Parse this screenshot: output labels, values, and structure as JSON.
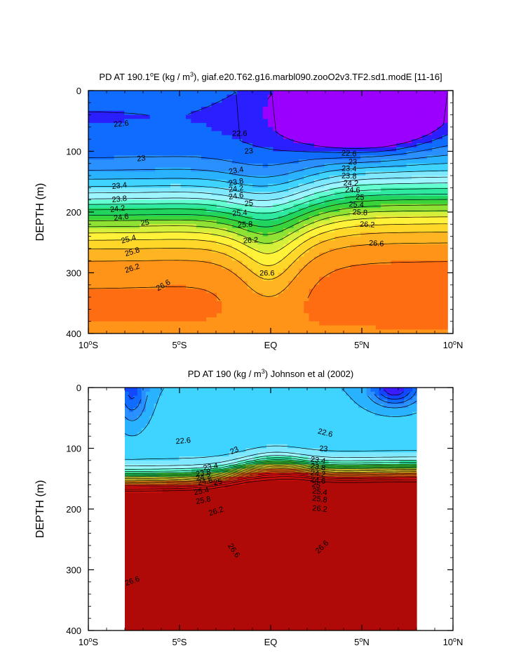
{
  "figure": {
    "background": "#ffffff"
  },
  "chart_data": [
    {
      "type": "contour",
      "panel": "model",
      "title_prefix": "PD AT 190.1",
      "title_deg": "o",
      "title_mid": "E (kg / m",
      "title_exp": "3",
      "title_suffix": "), giaf.e20.T62.g16.marbl090.zooO2v3.TF2.sd1.modE [11-16]",
      "ylabel": "DEPTH (m)",
      "xlim": [
        -10,
        10
      ],
      "ylim": [
        400,
        0
      ],
      "xticks": [
        {
          "v": -10,
          "num": "10",
          "hem": "S",
          "deg": "o"
        },
        {
          "v": -5,
          "num": "5",
          "hem": "S",
          "deg": "o"
        },
        {
          "v": 0,
          "num": "EQ",
          "hem": "",
          "deg": ""
        },
        {
          "v": 5,
          "num": "5",
          "hem": "N",
          "deg": "o"
        },
        {
          "v": 10,
          "num": "10",
          "hem": "N",
          "deg": "o"
        }
      ],
      "yticks": [
        0,
        100,
        200,
        300,
        400
      ],
      "data_lon_range": [
        -10,
        9.7
      ],
      "levels": [
        22.4,
        22.6,
        22.8,
        23.0,
        23.2,
        23.4,
        23.6,
        23.8,
        24.0,
        24.2,
        24.4,
        24.6,
        24.8,
        25.0,
        25.2,
        25.4,
        25.6,
        25.8,
        26.0,
        26.2,
        26.4,
        26.6,
        26.8
      ],
      "colors": [
        "#9b00ff",
        "#2a1fff",
        "#0f6cff",
        "#2a8fff",
        "#29b2ff",
        "#3fd4ff",
        "#7fe8ff",
        "#9df5ff",
        "#63ffd0",
        "#2fe9a0",
        "#21d45e",
        "#3ad33a",
        "#8fe234",
        "#d6ef3a",
        "#fff238",
        "#ffd729",
        "#ffb522",
        "#ff9418",
        "#ff6d12",
        "#ff3b10",
        "#ee1010",
        "#d8120f",
        "#c40f0c",
        "#b00a08"
      ],
      "contour_labels": [
        {
          "text": "22.6",
          "lon": -8.2,
          "depth": 54,
          "angle": -5
        },
        {
          "text": "22.6",
          "lon": -1.7,
          "depth": 70,
          "angle": 0
        },
        {
          "text": "23",
          "lon": -7.1,
          "depth": 111,
          "angle": -7
        },
        {
          "text": "23",
          "lon": -1.2,
          "depth": 99,
          "angle": -5
        },
        {
          "text": "22.6",
          "lon": 4.3,
          "depth": 103,
          "angle": 3
        },
        {
          "text": "23",
          "lon": 4.5,
          "depth": 117,
          "angle": 2
        },
        {
          "text": "23.4",
          "lon": -8.3,
          "depth": 156,
          "angle": -6
        },
        {
          "text": "23.4",
          "lon": -1.9,
          "depth": 131,
          "angle": -10
        },
        {
          "text": "23.4",
          "lon": 4.3,
          "depth": 128,
          "angle": 2
        },
        {
          "text": "23.8",
          "lon": -8.3,
          "depth": 178,
          "angle": -6
        },
        {
          "text": "23.8",
          "lon": -1.9,
          "depth": 150,
          "angle": -10
        },
        {
          "text": "23.8",
          "lon": 4.3,
          "depth": 140,
          "angle": 2
        },
        {
          "text": "24.2",
          "lon": -8.4,
          "depth": 194,
          "angle": -7
        },
        {
          "text": "24.2",
          "lon": -1.9,
          "depth": 161,
          "angle": -8
        },
        {
          "text": "24.2",
          "lon": 4.4,
          "depth": 152,
          "angle": 2
        },
        {
          "text": "24.6",
          "lon": -8.2,
          "depth": 208,
          "angle": -8
        },
        {
          "text": "24.6",
          "lon": -1.9,
          "depth": 173,
          "angle": -8
        },
        {
          "text": "24.6",
          "lon": 4.5,
          "depth": 163,
          "angle": 2
        },
        {
          "text": "25",
          "lon": -6.9,
          "depth": 217,
          "angle": -8
        },
        {
          "text": "25",
          "lon": -1.2,
          "depth": 185,
          "angle": -6
        },
        {
          "text": "25",
          "lon": 4.9,
          "depth": 175,
          "angle": 2
        },
        {
          "text": "25.4",
          "lon": -7.8,
          "depth": 244,
          "angle": -15
        },
        {
          "text": "25.4",
          "lon": -1.7,
          "depth": 201,
          "angle": -4
        },
        {
          "text": "25.4",
          "lon": 4.7,
          "depth": 187,
          "angle": 3
        },
        {
          "text": "25.8",
          "lon": -7.6,
          "depth": 265,
          "angle": -17
        },
        {
          "text": "25.8",
          "lon": -1.4,
          "depth": 220,
          "angle": -3
        },
        {
          "text": "25.8",
          "lon": 4.9,
          "depth": 200,
          "angle": 3
        },
        {
          "text": "26.2",
          "lon": -7.6,
          "depth": 292,
          "angle": -18
        },
        {
          "text": "26.2",
          "lon": -1.1,
          "depth": 246,
          "angle": -4
        },
        {
          "text": "26.2",
          "lon": 5.3,
          "depth": 220,
          "angle": 3
        },
        {
          "text": "26.6",
          "lon": -5.9,
          "depth": 320,
          "angle": -30
        },
        {
          "text": "26.6",
          "lon": -0.2,
          "depth": 300,
          "angle": 0
        },
        {
          "text": "26.6",
          "lon": 5.8,
          "depth": 251,
          "angle": 3
        }
      ]
    },
    {
      "type": "contour",
      "panel": "obs",
      "title_prefix": "PD AT 190 (kg / m",
      "title_exp": "3",
      "title_suffix": ") Johnson et al (2002)",
      "ylabel": "DEPTH (m)",
      "xlim": [
        -10,
        10
      ],
      "ylim": [
        400,
        0
      ],
      "xticks": [
        {
          "v": -10,
          "num": "10",
          "hem": "S",
          "deg": "o"
        },
        {
          "v": -5,
          "num": "5",
          "hem": "S",
          "deg": "o"
        },
        {
          "v": 0,
          "num": "EQ",
          "hem": "",
          "deg": ""
        },
        {
          "v": 5,
          "num": "5",
          "hem": "N",
          "deg": "o"
        },
        {
          "v": 10,
          "num": "10",
          "hem": "N",
          "deg": "o"
        }
      ],
      "yticks": [
        0,
        100,
        200,
        300,
        400
      ],
      "data_lon_range": [
        -8,
        8
      ],
      "levels": [
        22.0,
        22.2,
        22.4,
        22.6,
        22.8,
        23.0,
        23.2,
        23.4,
        23.6,
        23.8,
        24.0,
        24.2,
        24.4,
        24.6,
        24.8,
        25.0,
        25.2,
        25.4,
        25.6,
        25.8,
        26.0,
        26.2,
        26.4,
        26.6,
        26.8
      ],
      "colors": [
        "#d400e8",
        "#7c19ff",
        "#3b1cff",
        "#1047ff",
        "#0f6cff",
        "#2a8fff",
        "#29b2ff",
        "#3fd4ff",
        "#7fe8ff",
        "#9df5ff",
        "#63ffd0",
        "#2fe9a0",
        "#21d45e",
        "#3ad33a",
        "#8fe234",
        "#d6ef3a",
        "#fff238",
        "#ffd729",
        "#ffb522",
        "#ff9418",
        "#ff6d12",
        "#ff3b10",
        "#ee1010",
        "#d8120f",
        "#c40f0c",
        "#b00a08"
      ],
      "contour_labels": [
        {
          "text": "22.6",
          "lon": -4.8,
          "depth": 87,
          "angle": -5
        },
        {
          "text": "23",
          "lon": -2.0,
          "depth": 103,
          "angle": -25
        },
        {
          "text": "22.6",
          "lon": 3.0,
          "depth": 74,
          "angle": 15
        },
        {
          "text": "23",
          "lon": 2.9,
          "depth": 100,
          "angle": 5
        },
        {
          "text": "23.4",
          "lon": -3.3,
          "depth": 130,
          "angle": -10
        },
        {
          "text": "23.8",
          "lon": -3.7,
          "depth": 140,
          "angle": -10
        },
        {
          "text": "24.2",
          "lon": -3.7,
          "depth": 147,
          "angle": -10
        },
        {
          "text": "24.6",
          "lon": -3.6,
          "depth": 154,
          "angle": -10
        },
        {
          "text": "25",
          "lon": -2.9,
          "depth": 155,
          "angle": -10
        },
        {
          "text": "25.4",
          "lon": -3.8,
          "depth": 170,
          "angle": -12
        },
        {
          "text": "25.8",
          "lon": -3.7,
          "depth": 185,
          "angle": -12
        },
        {
          "text": "26.2",
          "lon": -3.0,
          "depth": 203,
          "angle": -18
        },
        {
          "text": "23.4",
          "lon": 2.6,
          "depth": 119,
          "angle": 8
        },
        {
          "text": "23.8",
          "lon": 2.6,
          "depth": 130,
          "angle": 8
        },
        {
          "text": "24.2",
          "lon": 2.6,
          "depth": 141,
          "angle": 8
        },
        {
          "text": "24.6",
          "lon": 2.6,
          "depth": 152,
          "angle": 8
        },
        {
          "text": "25",
          "lon": 2.5,
          "depth": 160,
          "angle": 8
        },
        {
          "text": "25.4",
          "lon": 2.7,
          "depth": 171,
          "angle": 8
        },
        {
          "text": "25.8",
          "lon": 2.7,
          "depth": 183,
          "angle": 8
        },
        {
          "text": "26.2",
          "lon": 2.7,
          "depth": 199,
          "angle": 5
        },
        {
          "text": "26.6",
          "lon": -2.0,
          "depth": 268,
          "angle": 55
        },
        {
          "text": "26.6",
          "lon": 2.8,
          "depth": 262,
          "angle": -45
        },
        {
          "text": "26.6",
          "lon": -7.6,
          "depth": 318,
          "angle": -20
        }
      ]
    }
  ]
}
